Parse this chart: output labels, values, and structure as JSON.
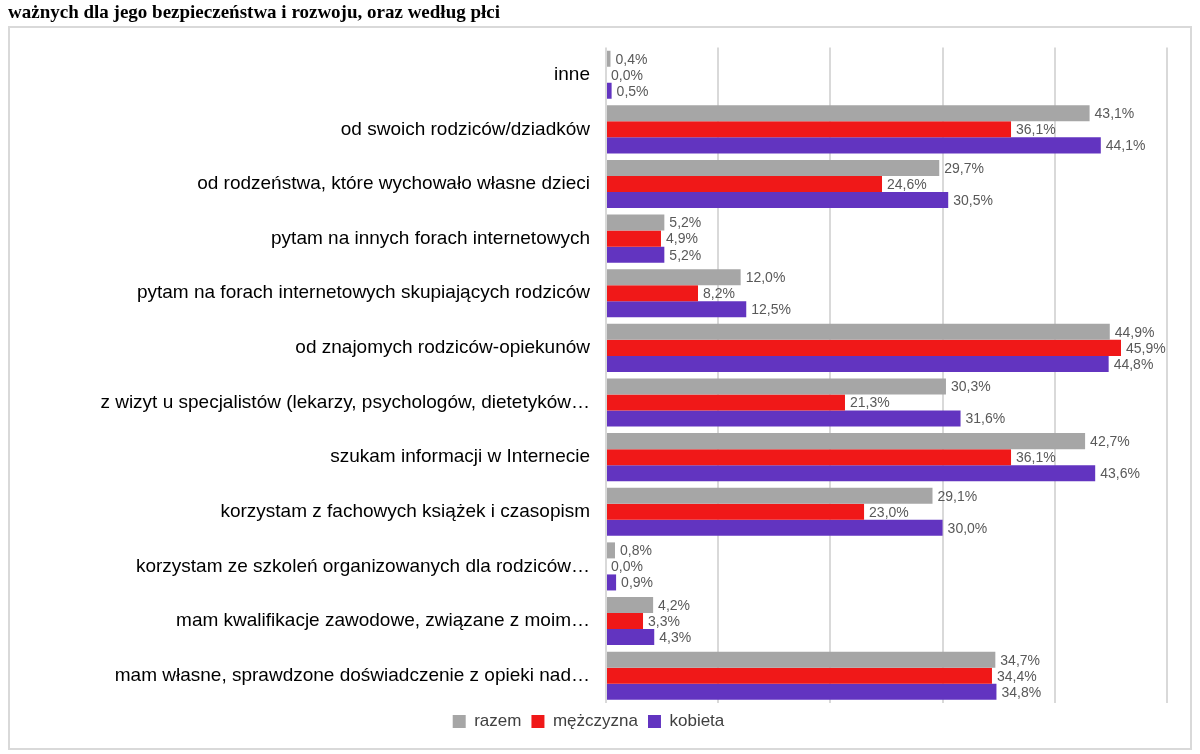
{
  "chart_data": {
    "type": "bar",
    "orientation": "horizontal",
    "title": "ważnych dla jego bezpieczeństwa i rozwoju, oraz według płci",
    "categories": [
      "inne",
      "od swoich rodziców/dziadków",
      "od rodzeństwa, które wychowało własne dzieci",
      "pytam na innych forach internetowych",
      "pytam na forach internetowych skupiających rodziców",
      "od znajomych rodziców-opiekunów",
      "z wizyt u specjalistów (lekarzy, psychologów, dietetyków…",
      "szukam informacji w Internecie",
      "korzystam z fachowych książek i czasopism",
      "korzystam ze szkoleń organizowanych dla rodziców…",
      "mam kwalifikacje zawodowe, związane z moim…",
      "mam własne, sprawdzone doświadczenie z opieki nad…"
    ],
    "series": [
      {
        "name": "razem",
        "color": "#a6a6a6",
        "values": [
          0.4,
          43.1,
          29.7,
          5.2,
          12.0,
          44.9,
          30.3,
          42.7,
          29.1,
          0.8,
          4.2,
          34.7
        ],
        "value_labels": [
          "0,4%",
          "43,1%",
          "29,7%",
          "5,2%",
          "12,0%",
          "44,9%",
          "30,3%",
          "42,7%",
          "29,1%",
          "0,8%",
          "4,2%",
          "34,7%"
        ]
      },
      {
        "name": "mężczyzna",
        "color": "#f01818",
        "values": [
          0.0,
          36.1,
          24.6,
          4.9,
          8.2,
          45.9,
          21.3,
          36.1,
          23.0,
          0.0,
          3.3,
          34.4
        ],
        "value_labels": [
          "0,0%",
          "36,1%",
          "24,6%",
          "4,9%",
          "8,2%",
          "45,9%",
          "21,3%",
          "36,1%",
          "23,0%",
          "0,0%",
          "3,3%",
          "34,4%"
        ]
      },
      {
        "name": "kobieta",
        "color": "#6234c0",
        "values": [
          0.5,
          44.1,
          30.5,
          5.2,
          12.5,
          44.8,
          31.6,
          43.6,
          30.0,
          0.9,
          4.3,
          34.8
        ],
        "value_labels": [
          "0,5%",
          "44,1%",
          "30,5%",
          "5,2%",
          "12,5%",
          "44,8%",
          "31,6%",
          "43,6%",
          "30,0%",
          "0,9%",
          "4,3%",
          "34,8%"
        ]
      }
    ],
    "xlim": [
      0,
      50
    ],
    "xticks": [
      0,
      10,
      20,
      30,
      40,
      50
    ],
    "tick_labels": "y",
    "grid": "x",
    "legend": "bottom"
  }
}
